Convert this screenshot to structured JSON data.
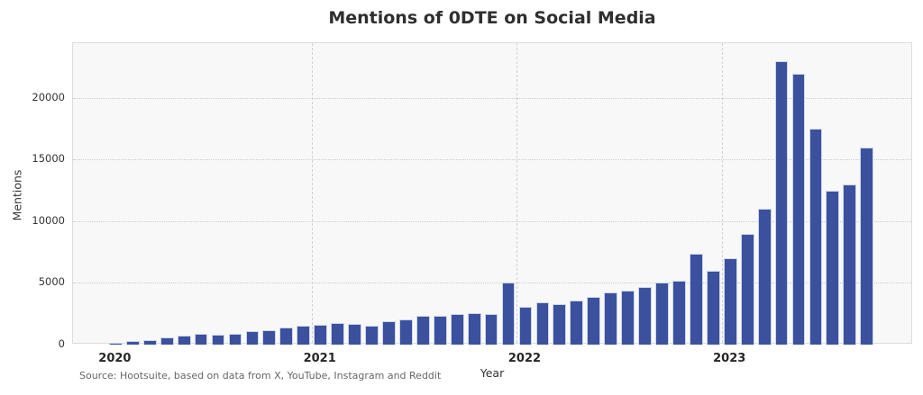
{
  "chart_data": {
    "type": "bar",
    "title": "Mentions of 0DTE on Social Media",
    "xlabel": "Year",
    "ylabel": "Mentions",
    "source": "Source: Hootsuite, based on data from X, YouTube, Instagram and Reddit",
    "ylim": [
      0,
      24450
    ],
    "yticks": [
      0,
      5000,
      10000,
      15000,
      20000
    ],
    "grid": true,
    "legend_position": "none",
    "bar_color": "#3B519E",
    "bar_edge_color": "#CCD5EC",
    "plot_background": "#F8F8F8",
    "year_tick_labels": [
      "2020",
      "2021",
      "2022",
      "2023"
    ],
    "year_tick_month_indices": [
      0,
      12,
      24,
      36
    ],
    "year_boundary_indices": [
      12,
      24,
      36
    ],
    "categories": [
      "2020-01",
      "2020-02",
      "2020-03",
      "2020-04",
      "2020-05",
      "2020-06",
      "2020-07",
      "2020-08",
      "2020-09",
      "2020-10",
      "2020-11",
      "2020-12",
      "2021-01",
      "2021-02",
      "2021-03",
      "2021-04",
      "2021-05",
      "2021-06",
      "2021-07",
      "2021-08",
      "2021-09",
      "2021-10",
      "2021-11",
      "2021-12",
      "2022-01",
      "2022-02",
      "2022-03",
      "2022-04",
      "2022-05",
      "2022-06",
      "2022-07",
      "2022-08",
      "2022-09",
      "2022-10",
      "2022-11",
      "2022-12",
      "2023-01",
      "2023-02",
      "2023-03",
      "2023-04",
      "2023-05",
      "2023-06",
      "2023-07",
      "2023-08",
      "2023-09"
    ],
    "values": [
      150,
      300,
      400,
      550,
      730,
      880,
      800,
      900,
      1100,
      1200,
      1400,
      1550,
      1600,
      1750,
      1650,
      1500,
      1900,
      2050,
      2350,
      2300,
      2450,
      2550,
      2500,
      5000,
      3100,
      3400,
      3250,
      3550,
      3900,
      4200,
      4400,
      4700,
      5000,
      5200,
      7400,
      6000,
      7000,
      9000,
      11000,
      23000,
      22000,
      17500,
      12500,
      13000,
      16000
    ]
  }
}
